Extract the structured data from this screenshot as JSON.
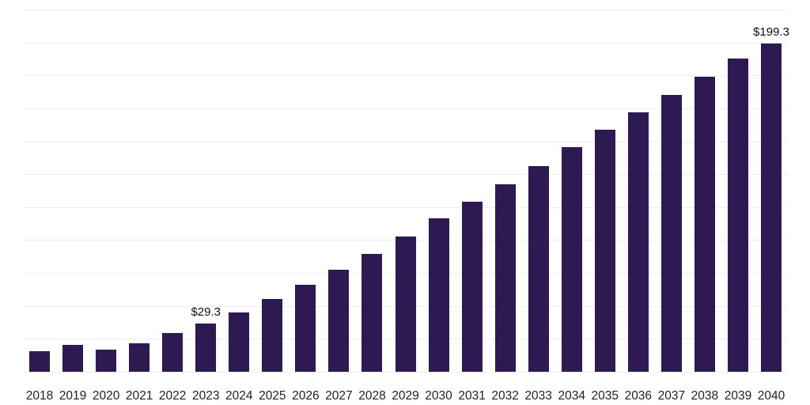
{
  "chart_data": {
    "type": "bar",
    "title": "",
    "xlabel": "",
    "ylabel": "",
    "categories": [
      "2018",
      "2019",
      "2020",
      "2021",
      "2022",
      "2023",
      "2024",
      "2025",
      "2026",
      "2027",
      "2028",
      "2029",
      "2030",
      "2031",
      "2032",
      "2033",
      "2034",
      "2035",
      "2036",
      "2037",
      "2038",
      "2039",
      "2040"
    ],
    "values": [
      12.5,
      16.2,
      13.5,
      17.3,
      23.5,
      29.3,
      36.0,
      44.0,
      53.0,
      62.0,
      71.5,
      82.0,
      93.0,
      103.5,
      114.0,
      125.0,
      136.5,
      147.0,
      157.5,
      168.0,
      179.0,
      190.0,
      199.3
    ],
    "data_labels": [
      {
        "index": 5,
        "text": "$29.3"
      },
      {
        "index": 22,
        "text": "$199.3"
      }
    ],
    "ylim": [
      0,
      220
    ],
    "grid_step": 20,
    "grid": true,
    "legend": "none",
    "colors": {
      "bar": "#2e1a52",
      "gridline": "#ededed",
      "axis_text": "#222222",
      "label_text": "#111111",
      "background": "#ffffff"
    }
  }
}
